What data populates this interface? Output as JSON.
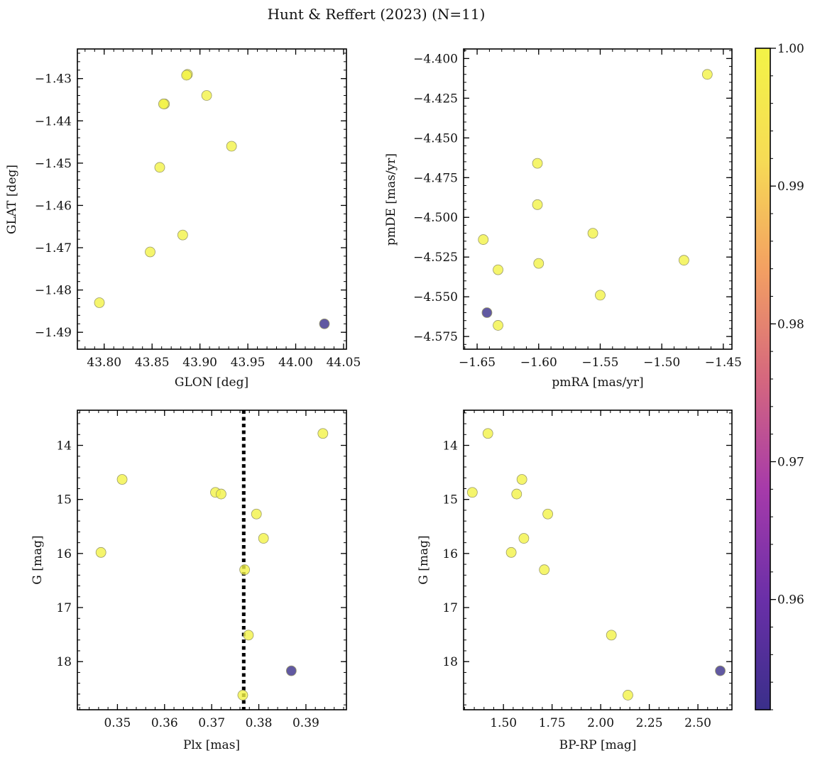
{
  "figure": {
    "title": "Hunt & Reffert (2023) (N=11)"
  },
  "chart_data": [
    {
      "id": "glon-glat",
      "type": "scatter",
      "xlabel": "GLON [deg]",
      "ylabel": "GLAT [deg]",
      "xlim": [
        43.772,
        44.053
      ],
      "ylim": [
        -1.494,
        -1.423
      ],
      "y_inverted": false,
      "xticks": [
        43.8,
        43.85,
        43.9,
        43.95,
        44.0,
        44.05
      ],
      "xticklabels": [
        "43.80",
        "43.85",
        "43.90",
        "43.95",
        "44.00",
        "44.05"
      ],
      "yticks": [
        -1.43,
        -1.44,
        -1.45,
        -1.46,
        -1.47,
        -1.48,
        -1.49
      ],
      "yticklabels": [
        "−1.43",
        "−1.44",
        "−1.45",
        "−1.46",
        "−1.47",
        "−1.48",
        "−1.49"
      ],
      "x_minor_step": 0.01,
      "y_minor_step": 0.002,
      "points": [
        {
          "x": 43.887,
          "y": -1.429,
          "c": 1.0
        },
        {
          "x": 43.886,
          "y": -1.4292,
          "c": 1.0
        },
        {
          "x": 43.907,
          "y": -1.434,
          "c": 1.0
        },
        {
          "x": 43.863,
          "y": -1.436,
          "c": 1.0
        },
        {
          "x": 43.862,
          "y": -1.436,
          "c": 1.0
        },
        {
          "x": 43.933,
          "y": -1.446,
          "c": 1.0
        },
        {
          "x": 43.858,
          "y": -1.451,
          "c": 1.0
        },
        {
          "x": 43.882,
          "y": -1.467,
          "c": 1.0
        },
        {
          "x": 43.848,
          "y": -1.471,
          "c": 1.0
        },
        {
          "x": 43.795,
          "y": -1.483,
          "c": 1.0
        },
        {
          "x": 44.03,
          "y": -1.488,
          "c": 0.95
        }
      ]
    },
    {
      "id": "pmra-pmde",
      "type": "scatter",
      "xlabel": "pmRA [mas/yr]",
      "ylabel": "pmDE [mas/yr]",
      "xlim": [
        -1.661,
        -1.443
      ],
      "ylim": [
        -4.583,
        -4.394
      ],
      "y_inverted": false,
      "xticks": [
        -1.65,
        -1.6,
        -1.55,
        -1.5,
        -1.45
      ],
      "xticklabels": [
        "−1.65",
        "−1.60",
        "−1.55",
        "−1.50",
        "−1.45"
      ],
      "yticks": [
        -4.4,
        -4.425,
        -4.45,
        -4.475,
        -4.5,
        -4.525,
        -4.55,
        -4.575
      ],
      "yticklabels": [
        "−4.400",
        "−4.425",
        "−4.450",
        "−4.475",
        "−4.500",
        "−4.525",
        "−4.550",
        "−4.575"
      ],
      "x_minor_step": 0.01,
      "y_minor_step": 0.005,
      "points": [
        {
          "x": -1.463,
          "y": -4.41,
          "c": 1.0
        },
        {
          "x": -1.601,
          "y": -4.466,
          "c": 1.0
        },
        {
          "x": -1.601,
          "y": -4.492,
          "c": 1.0
        },
        {
          "x": -1.645,
          "y": -4.514,
          "c": 1.0
        },
        {
          "x": -1.556,
          "y": -4.51,
          "c": 1.0
        },
        {
          "x": -1.482,
          "y": -4.527,
          "c": 1.0
        },
        {
          "x": -1.6,
          "y": -4.529,
          "c": 1.0
        },
        {
          "x": -1.633,
          "y": -4.533,
          "c": 1.0
        },
        {
          "x": -1.55,
          "y": -4.549,
          "c": 1.0
        },
        {
          "x": -1.642,
          "y": -4.56,
          "c": 0.95
        },
        {
          "x": -1.633,
          "y": -4.568,
          "c": 1.0
        }
      ]
    },
    {
      "id": "plx-g",
      "type": "scatter",
      "xlabel": "Plx [mas]",
      "ylabel": "G [mag]",
      "xlim": [
        0.3415,
        0.3986
      ],
      "ylim": [
        18.89,
        13.35
      ],
      "y_inverted": true,
      "xticks": [
        0.35,
        0.36,
        0.37,
        0.38,
        0.39
      ],
      "xticklabels": [
        "0.35",
        "0.36",
        "0.37",
        "0.38",
        "0.39"
      ],
      "yticks": [
        14,
        15,
        16,
        17,
        18
      ],
      "yticklabels": [
        "14",
        "15",
        "16",
        "17",
        "18"
      ],
      "x_minor_step": 0.002,
      "y_minor_step": 0.2,
      "vline": {
        "x": 0.3768,
        "style": "dotted"
      },
      "points": [
        {
          "x": 0.3936,
          "y": 13.78,
          "c": 1.0
        },
        {
          "x": 0.351,
          "y": 14.63,
          "c": 1.0
        },
        {
          "x": 0.3708,
          "y": 14.87,
          "c": 1.0
        },
        {
          "x": 0.372,
          "y": 14.9,
          "c": 1.0
        },
        {
          "x": 0.3795,
          "y": 15.27,
          "c": 1.0
        },
        {
          "x": 0.381,
          "y": 15.72,
          "c": 1.0
        },
        {
          "x": 0.3465,
          "y": 15.98,
          "c": 1.0
        },
        {
          "x": 0.377,
          "y": 16.3,
          "c": 1.0
        },
        {
          "x": 0.3778,
          "y": 17.51,
          "c": 1.0
        },
        {
          "x": 0.3869,
          "y": 18.17,
          "c": 0.95
        },
        {
          "x": 0.3766,
          "y": 18.62,
          "c": 1.0
        }
      ]
    },
    {
      "id": "bprp-g",
      "type": "scatter",
      "xlabel": "BP-RP [mag]",
      "ylabel": "G [mag]",
      "xlim": [
        1.295,
        2.675
      ],
      "ylim": [
        18.89,
        13.35
      ],
      "y_inverted": true,
      "xticks": [
        1.5,
        1.75,
        2.0,
        2.25,
        2.5
      ],
      "xticklabels": [
        "1.50",
        "1.75",
        "2.00",
        "2.25",
        "2.50"
      ],
      "yticks": [
        14,
        15,
        16,
        17,
        18
      ],
      "yticklabels": [
        "14",
        "15",
        "16",
        "17",
        "18"
      ],
      "x_minor_step": 0.05,
      "y_minor_step": 0.2,
      "points": [
        {
          "x": 1.42,
          "y": 13.78,
          "c": 1.0
        },
        {
          "x": 1.595,
          "y": 14.63,
          "c": 1.0
        },
        {
          "x": 1.34,
          "y": 14.87,
          "c": 1.0
        },
        {
          "x": 1.568,
          "y": 14.9,
          "c": 1.0
        },
        {
          "x": 1.728,
          "y": 15.27,
          "c": 1.0
        },
        {
          "x": 1.605,
          "y": 15.72,
          "c": 1.0
        },
        {
          "x": 1.54,
          "y": 15.98,
          "c": 1.0
        },
        {
          "x": 1.71,
          "y": 16.3,
          "c": 1.0
        },
        {
          "x": 2.055,
          "y": 17.51,
          "c": 1.0
        },
        {
          "x": 2.615,
          "y": 18.17,
          "c": 0.95
        },
        {
          "x": 2.14,
          "y": 18.62,
          "c": 1.0
        }
      ]
    }
  ],
  "colorbar": {
    "colormap": "plasma",
    "vmin": 0.952,
    "vmax": 1.0,
    "ticks": [
      0.96,
      0.97,
      0.98,
      0.99,
      1.0
    ],
    "ticklabels": [
      "0.96",
      "0.97",
      "0.98",
      "0.99",
      "1.00"
    ],
    "minor_step": 0.002,
    "stops": [
      "#3a2f8a",
      "#6a2fa8",
      "#a63aaa",
      "#d5677e",
      "#f3a062",
      "#f6dc55",
      "#f3f347"
    ]
  },
  "style": {
    "marker_edge": "#9a9a6a",
    "marker_alpha": 0.8,
    "vline_color": "#000000"
  }
}
